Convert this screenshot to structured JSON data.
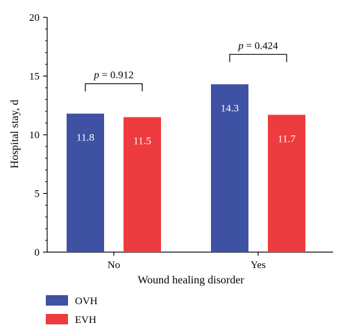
{
  "chart_data": {
    "type": "bar",
    "title": "",
    "xlabel": "Wound healing disorder",
    "ylabel": "Hospital stay, d",
    "categories": [
      "No",
      "Yes"
    ],
    "series": [
      {
        "name": "OVH",
        "values": [
          11.8,
          14.3
        ],
        "labels": [
          "11.8",
          "14.3"
        ],
        "color": "#3F51A3"
      },
      {
        "name": "EVH",
        "values": [
          11.5,
          11.7
        ],
        "labels": [
          "11.5",
          "11.7"
        ],
        "color": "#EE3B3F"
      }
    ],
    "ylim": [
      0,
      20
    ],
    "yticks": [
      0,
      5,
      10,
      15,
      20
    ],
    "grid": false,
    "legend_position": "bottom-left",
    "annotations": [
      {
        "category": "No",
        "p_symbol": "p",
        "p_value": " = 0.912"
      },
      {
        "category": "Yes",
        "p_symbol": "p",
        "p_value": " = 0.424"
      }
    ]
  }
}
